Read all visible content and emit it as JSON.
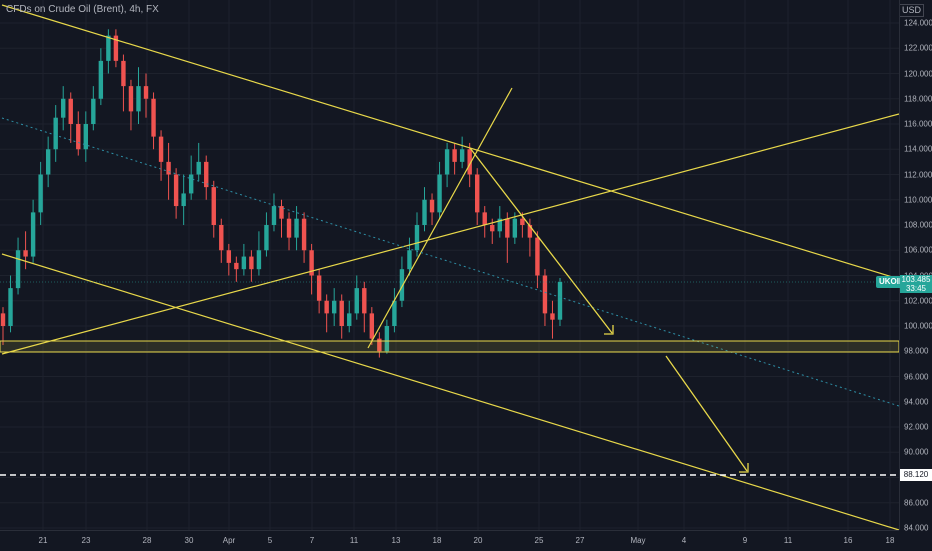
{
  "header": {
    "title": "CFDs on Crude Oil (Brent), 4h, FX",
    "currency": "USD"
  },
  "price_axis": {
    "ticks": [
      "124.000",
      "122.000",
      "120.000",
      "118.000",
      "116.000",
      "114.000",
      "112.000",
      "110.000",
      "108.000",
      "106.000",
      "104.000",
      "102.000",
      "100.000",
      "98.000",
      "96.000",
      "94.000",
      "92.000",
      "90.000",
      "88.000",
      "86.000",
      "84.000"
    ]
  },
  "time_axis": {
    "ticks": [
      "21",
      "23",
      "28",
      "30",
      "Apr",
      "5",
      "7",
      "11",
      "13",
      "18",
      "20",
      "25",
      "27",
      "May",
      "4",
      "9",
      "11",
      "16",
      "18"
    ]
  },
  "badges": {
    "symbol": "UKOIL",
    "last_price": "103.485",
    "countdown": "33:45",
    "target_level": "88.120"
  },
  "colors": {
    "background": "#131722",
    "up": "#26a69a",
    "down": "#ef5350",
    "drawing": "#e8d84a",
    "dotted_line": "#2e8fa6",
    "level": "#ffffff"
  },
  "chart_data": {
    "type": "candlestick",
    "symbol": "UKOIL",
    "interval": "4h",
    "ylim": [
      83.5,
      125
    ],
    "key_levels": {
      "support_zone": [
        97.9,
        99.1
      ],
      "target": 88.12,
      "last": 103.485
    },
    "candles": [
      [
        101,
        100,
        101.5,
        98.5
      ],
      [
        100,
        103,
        104,
        99.5
      ],
      [
        103,
        106,
        107,
        102.5
      ],
      [
        106,
        105.5,
        107.5,
        104.5
      ],
      [
        105.5,
        109,
        110,
        105
      ],
      [
        109,
        112,
        113,
        108
      ],
      [
        112,
        114,
        115,
        111
      ],
      [
        114,
        116.5,
        117.5,
        113
      ],
      [
        116.5,
        118,
        119,
        115.5
      ],
      [
        118,
        116,
        118.5,
        114.5
      ],
      [
        116,
        114,
        117,
        113.5
      ],
      [
        114,
        116,
        117,
        113
      ],
      [
        116,
        118,
        119,
        115.5
      ],
      [
        118,
        121,
        122,
        117.5
      ],
      [
        121,
        123,
        123.5,
        120
      ],
      [
        123,
        121,
        123.5,
        120.5
      ],
      [
        121,
        119,
        121.5,
        117
      ],
      [
        119,
        117,
        119.5,
        115.5
      ],
      [
        117,
        119,
        120.5,
        116
      ],
      [
        119,
        118,
        120,
        116.5
      ],
      [
        118,
        115,
        118.5,
        114
      ],
      [
        115,
        113,
        115.5,
        111.5
      ],
      [
        113,
        112,
        114.5,
        110
      ],
      [
        112,
        109.5,
        112.5,
        108.5
      ],
      [
        109.5,
        110.5,
        112,
        108
      ],
      [
        110.5,
        112,
        113.5,
        110
      ],
      [
        112,
        113,
        114.5,
        111.5
      ],
      [
        113,
        111,
        113.5,
        110
      ],
      [
        111,
        108,
        111.5,
        107
      ],
      [
        108,
        106,
        108.5,
        105
      ],
      [
        106,
        105,
        106.5,
        104
      ],
      [
        105,
        104.5,
        105.5,
        103.5
      ],
      [
        104.5,
        105.5,
        106.5,
        104
      ],
      [
        105.5,
        104.5,
        106,
        103.5
      ],
      [
        104.5,
        106,
        107.5,
        104
      ],
      [
        106,
        108,
        109,
        105.5
      ],
      [
        108,
        109.5,
        110.5,
        107.5
      ],
      [
        109.5,
        108.5,
        110,
        107
      ],
      [
        108.5,
        107,
        109,
        106
      ],
      [
        107,
        108.5,
        109.5,
        106
      ],
      [
        108.5,
        106,
        109,
        105
      ],
      [
        106,
        104,
        106.5,
        102.5
      ],
      [
        104,
        102,
        104.5,
        101
      ],
      [
        102,
        101,
        102.5,
        99.5
      ],
      [
        101,
        102,
        103,
        100
      ],
      [
        102,
        100,
        102.5,
        99
      ],
      [
        100,
        101,
        102,
        99.5
      ],
      [
        101,
        103,
        104,
        100.5
      ],
      [
        103,
        101,
        103.5,
        99.5
      ],
      [
        101,
        99,
        101.5,
        98.5
      ],
      [
        99,
        98,
        99.5,
        97.5
      ],
      [
        98,
        100,
        100.5,
        97.8
      ],
      [
        100,
        102,
        103,
        99.5
      ],
      [
        102,
        104.5,
        105.5,
        101.5
      ],
      [
        104.5,
        106,
        107,
        104
      ],
      [
        106,
        108,
        109,
        105.5
      ],
      [
        108,
        110,
        111,
        107.5
      ],
      [
        110,
        109,
        110.5,
        108
      ],
      [
        109,
        112,
        113,
        108.5
      ],
      [
        112,
        114,
        114.5,
        111
      ],
      [
        114,
        113,
        114.5,
        112
      ],
      [
        113,
        114,
        115,
        112.5
      ],
      [
        114,
        112,
        114.5,
        111
      ],
      [
        112,
        109,
        112.5,
        108
      ],
      [
        109,
        108,
        109.5,
        107
      ],
      [
        108,
        107.5,
        108.5,
        106.5
      ],
      [
        107.5,
        108.5,
        109.5,
        107
      ],
      [
        108.5,
        107,
        109,
        105
      ],
      [
        107,
        108.5,
        109,
        106.5
      ],
      [
        108.5,
        108,
        109,
        107
      ],
      [
        108,
        107,
        108.5,
        105.5
      ],
      [
        107,
        104,
        107.5,
        103
      ],
      [
        104,
        101,
        104.5,
        100
      ],
      [
        101,
        100.5,
        102,
        99
      ],
      [
        100.5,
        103.485,
        103.8,
        100
      ]
    ]
  }
}
